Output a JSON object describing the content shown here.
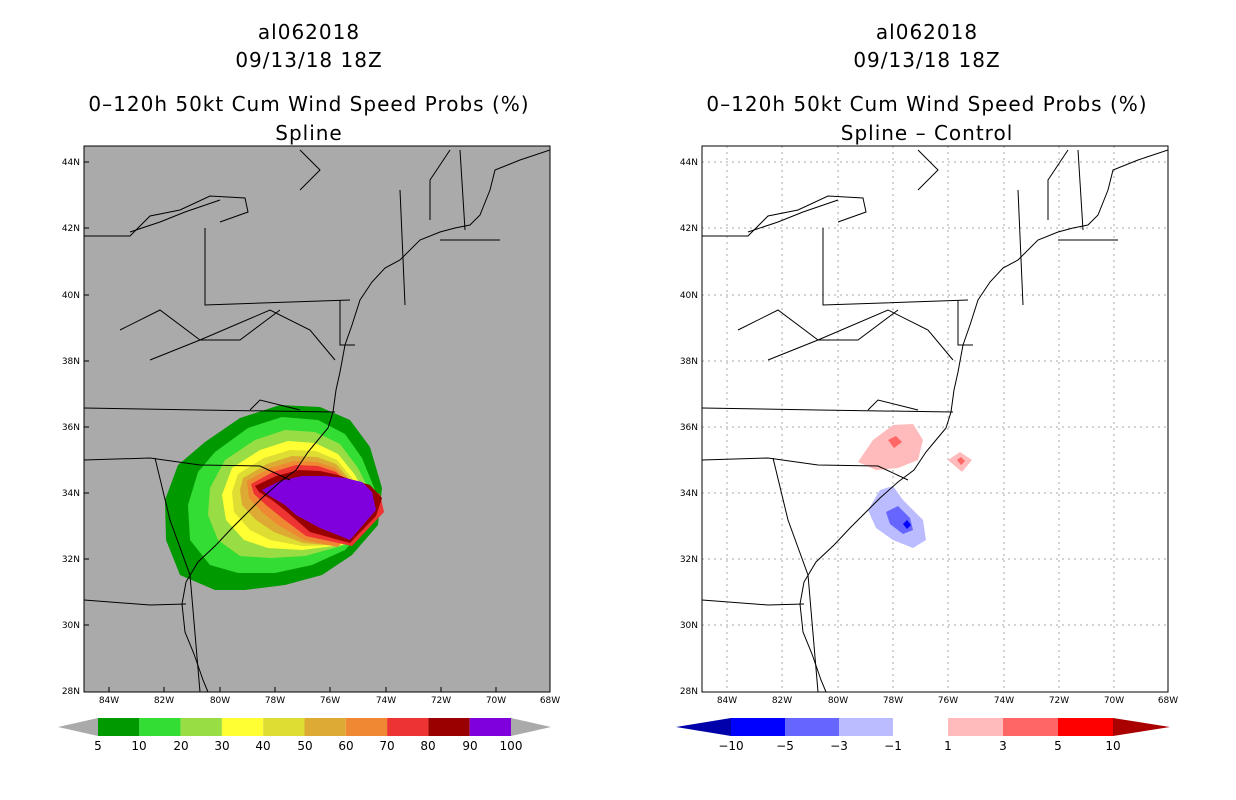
{
  "panels": [
    {
      "id": "spline",
      "storm": "al062018",
      "datetime": "09/13/18 18Z",
      "product": "0–120h 50kt Cum Wind Speed Probs (%)",
      "subtitle": "Spline",
      "lat_labels": [
        "44N",
        "42N",
        "40N",
        "38N",
        "36N",
        "34N",
        "32N",
        "30N",
        "28N"
      ],
      "lon_labels": [
        "84W",
        "82W",
        "80W",
        "78W",
        "76W",
        "74W",
        "72W",
        "70W",
        "68W"
      ],
      "colorbar": {
        "labels": [
          "5",
          "10",
          "20",
          "30",
          "40",
          "50",
          "60",
          "70",
          "80",
          "90",
          "100"
        ],
        "colors": [
          "#009900",
          "#33dd33",
          "#99dd44",
          "#ffff33",
          "#dddd33",
          "#ddaa33",
          "#ee8833",
          "#ee3333",
          "#990000",
          "#7f00dd"
        ]
      }
    },
    {
      "id": "diff",
      "storm": "al062018",
      "datetime": "09/13/18 18Z",
      "product": "0–120h 50kt Cum Wind Speed Probs (%)",
      "subtitle": "Spline – Control",
      "lat_labels": [
        "44N",
        "42N",
        "40N",
        "38N",
        "36N",
        "34N",
        "32N",
        "30N",
        "28N"
      ],
      "lon_labels": [
        "84W",
        "82W",
        "80W",
        "78W",
        "76W",
        "74W",
        "72W",
        "70W",
        "68W"
      ],
      "colorbar": {
        "labels": [
          "−10",
          "−5",
          "−3",
          "−1",
          "1",
          "3",
          "5",
          "10"
        ],
        "colors": [
          "#0000aa",
          "#0000ff",
          "#6666ff",
          "#bbbbff",
          "#ffffff",
          "#ffbbbb",
          "#ff6666",
          "#ff0000",
          "#aa0000"
        ]
      }
    }
  ]
}
